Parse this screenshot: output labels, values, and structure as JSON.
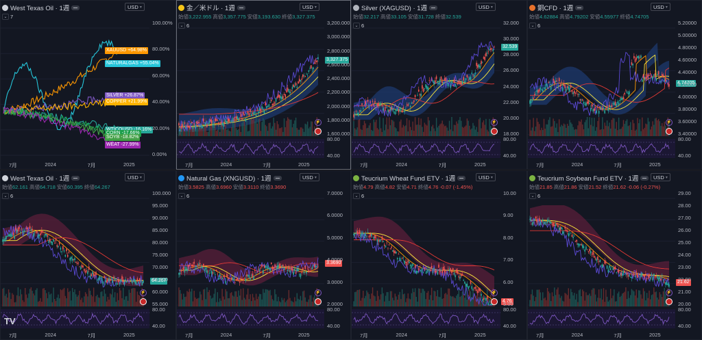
{
  "panels": [
    {
      "id": "wti-compare",
      "title": "West Texas Oil · 1週",
      "icon": "drop-icon",
      "icon_color": "#d1d4dc",
      "ohlc": null,
      "indicator_count": "7",
      "currency": "USD",
      "y_labels": [
        "100.00%",
        "80.00%",
        "60.00%",
        "40.00%",
        "20.00%",
        "0.00%"
      ],
      "x_labels": [
        "7月",
        "2024",
        "7月",
        "2025"
      ],
      "compare_tags": [
        {
          "label": "XAUUSD",
          "value": "+64.98%",
          "color": "#ff9800"
        },
        {
          "label": "NATURALGAS",
          "value": "+55.04%",
          "color": "#26c6da"
        },
        {
          "label": "SILVER",
          "value": "+26.87%",
          "color": "#7e57c2"
        },
        {
          "label": "COPPER",
          "value": "+21.99%",
          "color": "#ffb300"
        },
        {
          "label": "WTICOUSD",
          "value": "-16.16%",
          "color": "#26a69a"
        },
        {
          "label": "CORN",
          "value": "-17.66%",
          "color": "#1b9e4b"
        },
        {
          "label": "SOYB",
          "value": "-18.82%",
          "color": "#43a047"
        },
        {
          "label": "WEAT",
          "value": "-27.99%",
          "color": "#9c27b0"
        }
      ]
    },
    {
      "id": "gold",
      "title": "金／米ドル · 1週",
      "icon": "gold-coin-icon",
      "icon_color": "#f5c518",
      "ohlc": {
        "open_label": "始値",
        "open": "3,222.955",
        "high_label": "高値",
        "high": "3,357.775",
        "low_label": "安値",
        "low": "3,193.630",
        "close_label": "終値",
        "close": "3,327.375"
      },
      "indicator_count": "6",
      "currency": "USD",
      "last_price": "3,327.375",
      "last_color": "#26a69a",
      "y_labels": [
        "3,200.000",
        "3,000.000",
        "2,800.000",
        "2,600.000",
        "2,400.000",
        "2,200.000",
        "2,000.000",
        "1,800.000",
        "1,600.000"
      ],
      "osc_labels": [
        "80.00",
        "40.00"
      ],
      "x_labels": [
        "7月",
        "2024",
        "7月",
        "2025"
      ]
    },
    {
      "id": "silver",
      "title": "Silver (XAGUSD) · 1週",
      "icon": "silver-coin-icon",
      "icon_color": "#b0b4bc",
      "ohlc": {
        "open_label": "始値",
        "open": "32.217",
        "high_label": "高値",
        "high": "33.105",
        "low_label": "安値",
        "low": "31.728",
        "close_label": "終値",
        "close": "32.539"
      },
      "indicator_count": "6",
      "currency": "USD",
      "last_price": "32.539",
      "last_color": "#26a69a",
      "y_labels": [
        "32.000",
        "30.000",
        "28.000",
        "26.000",
        "24.000",
        "22.000",
        "20.000",
        "18.000"
      ],
      "osc_labels": [
        "80.00",
        "40.00"
      ],
      "x_labels": [
        "7月",
        "2024",
        "7月",
        "2025"
      ]
    },
    {
      "id": "copper",
      "title": "銅CFD · 1週",
      "icon": "copper-icon",
      "icon_color": "#e8712b",
      "ohlc": {
        "open_label": "始値",
        "open": "4.62884",
        "high_label": "高値",
        "high": "4.79202",
        "low_label": "安値",
        "low": "4.55977",
        "close_label": "終値",
        "close": "4.74705"
      },
      "indicator_count": "6",
      "currency": "USD",
      "last_price": "4.74705",
      "last_color": "#26a69a",
      "y_labels": [
        "5.20000",
        "5.00000",
        "4.80000",
        "4.60000",
        "4.40000",
        "4.20000",
        "4.00000",
        "3.80000",
        "3.60000",
        "3.40000"
      ],
      "osc_labels": [
        "80.00",
        "40.00"
      ],
      "x_labels": [
        "7月",
        "2024",
        "7月",
        "2025"
      ]
    },
    {
      "id": "wti",
      "title": "West Texas Oil · 1週",
      "icon": "drop-icon",
      "icon_color": "#d1d4dc",
      "ohlc": {
        "open_label": "始値",
        "open": "62.161",
        "high_label": "高値",
        "high": "64.718",
        "low_label": "安値",
        "low": "60.395",
        "close_label": "終値",
        "close": "64.267"
      },
      "indicator_count": "6",
      "currency": "USD",
      "last_price": "64.267",
      "last_color": "#26a69a",
      "y_labels": [
        "100.000",
        "95.000",
        "90.000",
        "85.000",
        "80.000",
        "75.000",
        "70.000",
        "65.000",
        "60.000",
        "55.000"
      ],
      "osc_labels": [
        "80.00",
        "40.00"
      ],
      "x_labels": [
        "7月",
        "2024",
        "7月",
        "2025"
      ]
    },
    {
      "id": "natgas",
      "title": "Natural Gas (XNGUSD) · 1週",
      "icon": "flame-icon",
      "icon_color": "#2196f3",
      "ohlc": {
        "open_label": "始値",
        "open": "3.5825",
        "high_label": "高値",
        "high": "3.6960",
        "low_label": "安値",
        "low": "3.3110",
        "close_label": "終値",
        "close": "3.3690"
      },
      "indicator_count": "6",
      "currency": "USD",
      "last_price": "3.3690",
      "last_color": "#ef5350",
      "y_labels": [
        "7.0000",
        "6.0000",
        "5.0000",
        "4.0000",
        "3.0000",
        "2.0000"
      ],
      "osc_labels": [
        "80.00",
        "40.00"
      ],
      "x_labels": [
        "7月",
        "2024",
        "7月",
        "2025"
      ]
    },
    {
      "id": "weat",
      "title": "Teucrium Wheat Fund ETV · 1週",
      "icon": "teucrium-icon",
      "icon_color": "#7cb342",
      "ohlc": {
        "open_label": "始値",
        "open": "4.79",
        "high_label": "高値",
        "high": "4.82",
        "low_label": "安値",
        "low": "4.71",
        "close_label": "終値",
        "close": "4.76",
        "change": "-0.07 (-1.45%)"
      },
      "indicator_count": "6",
      "currency": "USD",
      "last_price": "4.76",
      "last_color": "#ef5350",
      "y_labels": [
        "10.00",
        "9.00",
        "8.00",
        "7.00",
        "6.00",
        "5.00"
      ],
      "osc_labels": [
        "80.00",
        "40.00"
      ],
      "x_labels": [
        "7月",
        "2024",
        "7月",
        "2025"
      ]
    },
    {
      "id": "soyb",
      "title": "Teucrium Soybean Fund ETV · 1週",
      "icon": "teucrium-icon",
      "icon_color": "#7cb342",
      "ohlc": {
        "open_label": "始値",
        "open": "21.85",
        "high_label": "高値",
        "high": "21.86",
        "low_label": "安値",
        "low": "21.52",
        "close_label": "終値",
        "close": "21.62",
        "change": "-0.06 (-0.27%)"
      },
      "indicator_count": "6",
      "currency": "USD",
      "last_price": "21.62",
      "last_color": "#ef5350",
      "y_labels": [
        "29.00",
        "28.00",
        "27.00",
        "26.00",
        "25.00",
        "24.00",
        "23.00",
        "22.00",
        "21.00",
        "20.00"
      ],
      "osc_labels": [
        "80.00",
        "40.00"
      ],
      "x_labels": [
        "7月",
        "2024",
        "7月",
        "2025"
      ]
    }
  ],
  "logo": "TV",
  "colors": {
    "up": "#26a69a",
    "down": "#ef5350",
    "bg": "#131722",
    "grid": "#1e222d",
    "osc": "#7e57c2",
    "cloud_up": "#1e3a6e",
    "cloud_dn": "#5a1f3a"
  }
}
